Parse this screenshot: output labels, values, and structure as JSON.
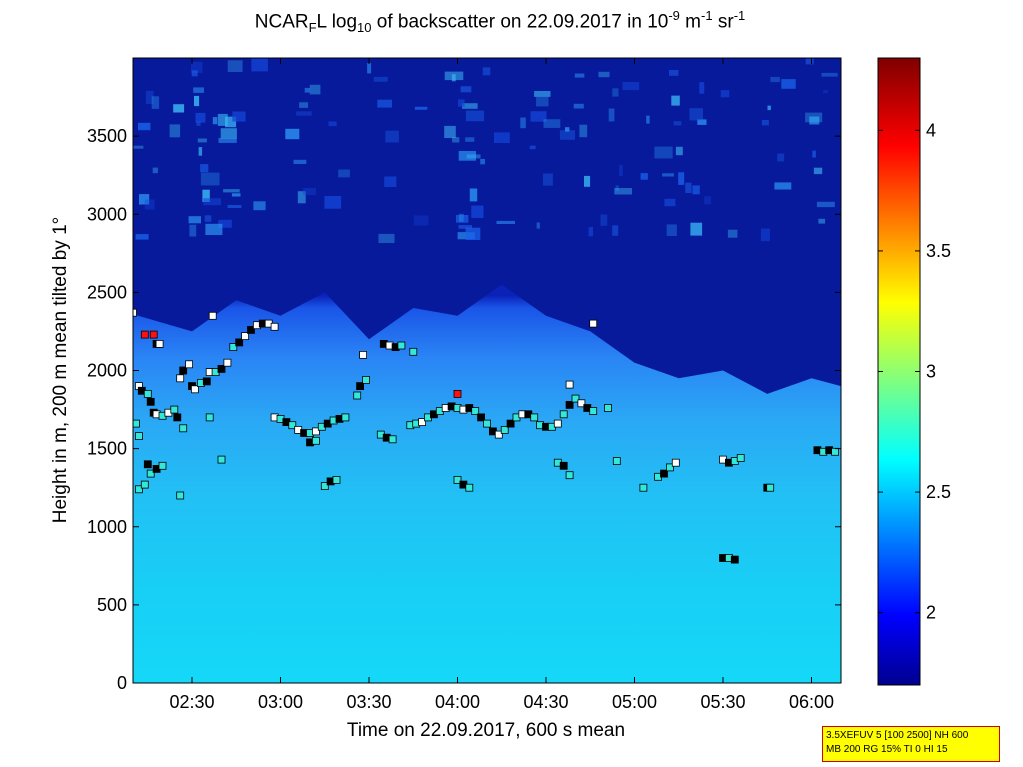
{
  "title": {
    "prefix": "NCAR",
    "sub1": "F",
    "mid1": "L log",
    "sub2": "10",
    "mid2": " of backscatter on 22.09.2017 in 10",
    "sup1": "-9",
    "mid3": " m",
    "sup2": "-1",
    "mid4": " sr",
    "sup3": "-1"
  },
  "info_box": {
    "line1": "3.5XEFUV 5 [100 2500] NH 600",
    "line2": "MB 200 RG 15% TI 0 HI 15"
  },
  "chart_data": {
    "type": "heatmap",
    "xlabel": "Time on 22.09.2017, 600 s mean",
    "ylabel": "Height in m, 200 m mean tilted by 1°",
    "x_ticks": [
      "02:30",
      "03:00",
      "03:30",
      "04:00",
      "04:30",
      "05:00",
      "05:30",
      "06:00"
    ],
    "x_range": [
      "02:10",
      "06:10"
    ],
    "y_ticks": [
      0,
      500,
      1000,
      1500,
      2000,
      2500,
      3000,
      3500
    ],
    "ylim": [
      0,
      4000
    ],
    "colorbar": {
      "range": [
        1.7,
        4.3
      ],
      "ticks": [
        2,
        2.5,
        3,
        3.5,
        4
      ],
      "colormap": "jet"
    },
    "layer_top": [
      {
        "time": "02:10",
        "height": 2360
      },
      {
        "time": "02:30",
        "height": 2250
      },
      {
        "time": "02:45",
        "height": 2450
      },
      {
        "time": "03:00",
        "height": 2350
      },
      {
        "time": "03:15",
        "height": 2500
      },
      {
        "time": "03:30",
        "height": 2200
      },
      {
        "time": "03:45",
        "height": 2400
      },
      {
        "time": "04:00",
        "height": 2350
      },
      {
        "time": "04:15",
        "height": 2550
      },
      {
        "time": "04:30",
        "height": 2350
      },
      {
        "time": "04:45",
        "height": 2250
      },
      {
        "time": "05:00",
        "height": 2050
      },
      {
        "time": "05:15",
        "height": 1950
      },
      {
        "time": "05:30",
        "height": 2000
      },
      {
        "time": "05:45",
        "height": 1850
      },
      {
        "time": "06:00",
        "height": 1950
      },
      {
        "time": "06:10",
        "height": 1900
      }
    ],
    "markers": [
      {
        "t": "02:10",
        "h": 2370,
        "c": "white"
      },
      {
        "t": "02:14",
        "h": 2230,
        "c": "red"
      },
      {
        "t": "02:17",
        "h": 2230,
        "c": "red"
      },
      {
        "t": "02:18",
        "h": 2170,
        "c": "black"
      },
      {
        "t": "02:19",
        "h": 2170,
        "c": "white"
      },
      {
        "t": "02:12",
        "h": 1900,
        "c": "white"
      },
      {
        "t": "02:13",
        "h": 1870,
        "c": "black"
      },
      {
        "t": "02:15",
        "h": 1850,
        "c": "cyan"
      },
      {
        "t": "02:16",
        "h": 1800,
        "c": "black"
      },
      {
        "t": "02:17",
        "h": 1730,
        "c": "black"
      },
      {
        "t": "02:18",
        "h": 1720,
        "c": "white"
      },
      {
        "t": "02:20",
        "h": 1710,
        "c": "cyan"
      },
      {
        "t": "02:22",
        "h": 1730,
        "c": "white"
      },
      {
        "t": "02:24",
        "h": 1750,
        "c": "cyan"
      },
      {
        "t": "02:25",
        "h": 1700,
        "c": "black"
      },
      {
        "t": "02:26",
        "h": 1950,
        "c": "white"
      },
      {
        "t": "02:27",
        "h": 2000,
        "c": "black"
      },
      {
        "t": "02:29",
        "h": 2040,
        "c": "white"
      },
      {
        "t": "02:30",
        "h": 1900,
        "c": "black"
      },
      {
        "t": "02:31",
        "h": 1880,
        "c": "white"
      },
      {
        "t": "02:33",
        "h": 1920,
        "c": "cyan"
      },
      {
        "t": "02:35",
        "h": 1930,
        "c": "black"
      },
      {
        "t": "02:36",
        "h": 1990,
        "c": "white"
      },
      {
        "t": "02:37",
        "h": 2350,
        "c": "white"
      },
      {
        "t": "02:38",
        "h": 1990,
        "c": "cyan"
      },
      {
        "t": "02:40",
        "h": 2010,
        "c": "black"
      },
      {
        "t": "02:42",
        "h": 2050,
        "c": "white"
      },
      {
        "t": "02:44",
        "h": 2150,
        "c": "cyan"
      },
      {
        "t": "02:46",
        "h": 2180,
        "c": "black"
      },
      {
        "t": "02:48",
        "h": 2220,
        "c": "white"
      },
      {
        "t": "02:50",
        "h": 2260,
        "c": "black"
      },
      {
        "t": "02:52",
        "h": 2290,
        "c": "white"
      },
      {
        "t": "02:54",
        "h": 2300,
        "c": "black"
      },
      {
        "t": "02:56",
        "h": 2300,
        "c": "white"
      },
      {
        "t": "02:58",
        "h": 2280,
        "c": "white"
      },
      {
        "t": "02:11",
        "h": 1660,
        "c": "cyan"
      },
      {
        "t": "02:12",
        "h": 1580,
        "c": "cyan"
      },
      {
        "t": "02:15",
        "h": 1400,
        "c": "black"
      },
      {
        "t": "02:16",
        "h": 1340,
        "c": "cyan"
      },
      {
        "t": "02:18",
        "h": 1370,
        "c": "black"
      },
      {
        "t": "02:20",
        "h": 1390,
        "c": "cyan"
      },
      {
        "t": "02:12",
        "h": 1240,
        "c": "cyan"
      },
      {
        "t": "02:14",
        "h": 1270,
        "c": "cyan"
      },
      {
        "t": "02:26",
        "h": 1200,
        "c": "cyan"
      },
      {
        "t": "02:27",
        "h": 1630,
        "c": "cyan"
      },
      {
        "t": "02:36",
        "h": 1700,
        "c": "cyan"
      },
      {
        "t": "02:40",
        "h": 1430,
        "c": "cyan"
      },
      {
        "t": "02:58",
        "h": 1700,
        "c": "white"
      },
      {
        "t": "03:00",
        "h": 1690,
        "c": "cyan"
      },
      {
        "t": "03:02",
        "h": 1670,
        "c": "black"
      },
      {
        "t": "03:04",
        "h": 1650,
        "c": "cyan"
      },
      {
        "t": "03:06",
        "h": 1620,
        "c": "white"
      },
      {
        "t": "03:08",
        "h": 1600,
        "c": "black"
      },
      {
        "t": "03:10",
        "h": 1600,
        "c": "cyan"
      },
      {
        "t": "03:12",
        "h": 1610,
        "c": "white"
      },
      {
        "t": "03:14",
        "h": 1640,
        "c": "cyan"
      },
      {
        "t": "03:16",
        "h": 1660,
        "c": "black"
      },
      {
        "t": "03:18",
        "h": 1680,
        "c": "cyan"
      },
      {
        "t": "03:20",
        "h": 1690,
        "c": "black"
      },
      {
        "t": "03:22",
        "h": 1700,
        "c": "cyan"
      },
      {
        "t": "03:10",
        "h": 1540,
        "c": "black"
      },
      {
        "t": "03:12",
        "h": 1550,
        "c": "cyan"
      },
      {
        "t": "03:15",
        "h": 1260,
        "c": "cyan"
      },
      {
        "t": "03:17",
        "h": 1290,
        "c": "black"
      },
      {
        "t": "03:19",
        "h": 1300,
        "c": "cyan"
      },
      {
        "t": "03:26",
        "h": 1840,
        "c": "cyan"
      },
      {
        "t": "03:27",
        "h": 1900,
        "c": "black"
      },
      {
        "t": "03:29",
        "h": 1940,
        "c": "cyan"
      },
      {
        "t": "03:28",
        "h": 2100,
        "c": "white"
      },
      {
        "t": "03:34",
        "h": 1590,
        "c": "cyan"
      },
      {
        "t": "03:36",
        "h": 1570,
        "c": "black"
      },
      {
        "t": "03:38",
        "h": 1560,
        "c": "cyan"
      },
      {
        "t": "03:35",
        "h": 2170,
        "c": "black"
      },
      {
        "t": "03:37",
        "h": 2160,
        "c": "white"
      },
      {
        "t": "03:39",
        "h": 2150,
        "c": "black"
      },
      {
        "t": "03:41",
        "h": 2160,
        "c": "cyan"
      },
      {
        "t": "03:45",
        "h": 2120,
        "c": "cyan"
      },
      {
        "t": "03:44",
        "h": 1650,
        "c": "cyan"
      },
      {
        "t": "03:46",
        "h": 1660,
        "c": "cyan"
      },
      {
        "t": "03:48",
        "h": 1670,
        "c": "white"
      },
      {
        "t": "03:50",
        "h": 1700,
        "c": "cyan"
      },
      {
        "t": "03:52",
        "h": 1720,
        "c": "black"
      },
      {
        "t": "03:54",
        "h": 1740,
        "c": "cyan"
      },
      {
        "t": "03:56",
        "h": 1760,
        "c": "white"
      },
      {
        "t": "03:58",
        "h": 1770,
        "c": "black"
      },
      {
        "t": "04:00",
        "h": 1850,
        "c": "red"
      },
      {
        "t": "04:00",
        "h": 1760,
        "c": "cyan"
      },
      {
        "t": "04:02",
        "h": 1750,
        "c": "white"
      },
      {
        "t": "04:04",
        "h": 1760,
        "c": "black"
      },
      {
        "t": "04:06",
        "h": 1740,
        "c": "cyan"
      },
      {
        "t": "04:08",
        "h": 1700,
        "c": "black"
      },
      {
        "t": "04:10",
        "h": 1660,
        "c": "cyan"
      },
      {
        "t": "04:12",
        "h": 1610,
        "c": "black"
      },
      {
        "t": "04:14",
        "h": 1590,
        "c": "white"
      },
      {
        "t": "04:16",
        "h": 1620,
        "c": "cyan"
      },
      {
        "t": "04:18",
        "h": 1660,
        "c": "black"
      },
      {
        "t": "04:20",
        "h": 1700,
        "c": "cyan"
      },
      {
        "t": "04:22",
        "h": 1720,
        "c": "white"
      },
      {
        "t": "04:24",
        "h": 1720,
        "c": "black"
      },
      {
        "t": "04:26",
        "h": 1700,
        "c": "cyan"
      },
      {
        "t": "04:00",
        "h": 1300,
        "c": "cyan"
      },
      {
        "t": "04:02",
        "h": 1270,
        "c": "black"
      },
      {
        "t": "04:04",
        "h": 1250,
        "c": "cyan"
      },
      {
        "t": "04:28",
        "h": 1650,
        "c": "cyan"
      },
      {
        "t": "04:30",
        "h": 1640,
        "c": "black"
      },
      {
        "t": "04:32",
        "h": 1640,
        "c": "cyan"
      },
      {
        "t": "04:34",
        "h": 1660,
        "c": "white"
      },
      {
        "t": "04:36",
        "h": 1720,
        "c": "cyan"
      },
      {
        "t": "04:38",
        "h": 1780,
        "c": "black"
      },
      {
        "t": "04:40",
        "h": 1820,
        "c": "cyan"
      },
      {
        "t": "04:42",
        "h": 1790,
        "c": "white"
      },
      {
        "t": "04:44",
        "h": 1760,
        "c": "black"
      },
      {
        "t": "04:46",
        "h": 1740,
        "c": "cyan"
      },
      {
        "t": "04:38",
        "h": 1910,
        "c": "white"
      },
      {
        "t": "04:46",
        "h": 2300,
        "c": "white"
      },
      {
        "t": "04:51",
        "h": 1760,
        "c": "cyan"
      },
      {
        "t": "04:34",
        "h": 1410,
        "c": "cyan"
      },
      {
        "t": "04:36",
        "h": 1390,
        "c": "black"
      },
      {
        "t": "04:38",
        "h": 1330,
        "c": "cyan"
      },
      {
        "t": "04:54",
        "h": 1420,
        "c": "cyan"
      },
      {
        "t": "05:03",
        "h": 1250,
        "c": "cyan"
      },
      {
        "t": "05:08",
        "h": 1320,
        "c": "cyan"
      },
      {
        "t": "05:10",
        "h": 1340,
        "c": "black"
      },
      {
        "t": "05:12",
        "h": 1380,
        "c": "cyan"
      },
      {
        "t": "05:14",
        "h": 1410,
        "c": "white"
      },
      {
        "t": "05:30",
        "h": 1430,
        "c": "white"
      },
      {
        "t": "05:32",
        "h": 1410,
        "c": "black"
      },
      {
        "t": "05:34",
        "h": 1420,
        "c": "cyan"
      },
      {
        "t": "05:36",
        "h": 1440,
        "c": "cyan"
      },
      {
        "t": "05:30",
        "h": 800,
        "c": "black"
      },
      {
        "t": "05:32",
        "h": 800,
        "c": "cyan"
      },
      {
        "t": "05:34",
        "h": 790,
        "c": "black"
      },
      {
        "t": "05:45",
        "h": 1250,
        "c": "black"
      },
      {
        "t": "05:46",
        "h": 1250,
        "c": "cyan"
      },
      {
        "t": "06:02",
        "h": 1490,
        "c": "black"
      },
      {
        "t": "06:04",
        "h": 1480,
        "c": "cyan"
      },
      {
        "t": "06:06",
        "h": 1490,
        "c": "black"
      },
      {
        "t": "06:08",
        "h": 1480,
        "c": "cyan"
      }
    ]
  }
}
